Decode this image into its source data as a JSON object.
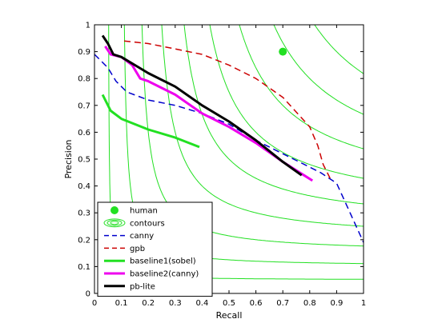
{
  "chart_data": {
    "type": "line",
    "xlabel": "Recall",
    "ylabel": "Precision",
    "xlim": [
      0,
      1
    ],
    "ylim": [
      0,
      1
    ],
    "x_ticks": [
      "0",
      "0.1",
      "0.2",
      "0.3",
      "0.4",
      "0.5",
      "0.6",
      "0.7",
      "0.8",
      "0.9",
      "1"
    ],
    "y_ticks": [
      "0",
      "0.1",
      "0.2",
      "0.3",
      "0.4",
      "0.5",
      "0.6",
      "0.7",
      "0.8",
      "0.9",
      "1"
    ],
    "grid": false,
    "legend_position": "bottom-left",
    "contour_levels": [
      0.1,
      0.2,
      0.3,
      0.4,
      0.5,
      0.6,
      0.7,
      0.8,
      0.9
    ],
    "series": [
      {
        "name": "human",
        "kind": "marker",
        "color": "#22e022",
        "points": [
          [
            0.7,
            0.9
          ]
        ]
      },
      {
        "name": "contours",
        "kind": "contour",
        "color": "#22e022",
        "points": []
      },
      {
        "name": "canny",
        "kind": "line",
        "color": "#0000cc",
        "dash": "dashed",
        "width": 1.5,
        "points": [
          [
            0.0,
            0.89
          ],
          [
            0.05,
            0.84
          ],
          [
            0.08,
            0.79
          ],
          [
            0.12,
            0.75
          ],
          [
            0.2,
            0.72
          ],
          [
            0.3,
            0.7
          ],
          [
            0.4,
            0.67
          ],
          [
            0.5,
            0.63
          ],
          [
            0.6,
            0.57
          ],
          [
            0.7,
            0.52
          ],
          [
            0.78,
            0.48
          ],
          [
            0.84,
            0.45
          ],
          [
            0.9,
            0.41
          ],
          [
            0.95,
            0.3
          ],
          [
            1.0,
            0.19
          ]
        ]
      },
      {
        "name": "gpb",
        "kind": "line",
        "color": "#cc0000",
        "dash": "dashed",
        "width": 1.5,
        "points": [
          [
            0.11,
            0.94
          ],
          [
            0.2,
            0.93
          ],
          [
            0.3,
            0.91
          ],
          [
            0.4,
            0.89
          ],
          [
            0.5,
            0.85
          ],
          [
            0.6,
            0.8
          ],
          [
            0.7,
            0.73
          ],
          [
            0.8,
            0.62
          ],
          [
            0.83,
            0.55
          ],
          [
            0.85,
            0.48
          ],
          [
            0.88,
            0.42
          ]
        ]
      },
      {
        "name": "baseline1(sobel)",
        "kind": "line",
        "color": "#22e022",
        "dash": "solid",
        "width": 3,
        "points": [
          [
            0.03,
            0.74
          ],
          [
            0.06,
            0.68
          ],
          [
            0.1,
            0.65
          ],
          [
            0.2,
            0.61
          ],
          [
            0.3,
            0.58
          ],
          [
            0.39,
            0.545
          ]
        ]
      },
      {
        "name": "baseline2(canny)",
        "kind": "line",
        "color": "#ee00ee",
        "dash": "solid",
        "width": 3,
        "points": [
          [
            0.04,
            0.92
          ],
          [
            0.06,
            0.89
          ],
          [
            0.1,
            0.88
          ],
          [
            0.14,
            0.85
          ],
          [
            0.17,
            0.8
          ],
          [
            0.2,
            0.79
          ],
          [
            0.3,
            0.74
          ],
          [
            0.4,
            0.67
          ],
          [
            0.5,
            0.62
          ],
          [
            0.6,
            0.56
          ],
          [
            0.7,
            0.49
          ],
          [
            0.81,
            0.42
          ]
        ]
      },
      {
        "name": "pb-lite",
        "kind": "line",
        "color": "#000000",
        "dash": "solid",
        "width": 3,
        "points": [
          [
            0.03,
            0.96
          ],
          [
            0.05,
            0.93
          ],
          [
            0.07,
            0.89
          ],
          [
            0.1,
            0.88
          ],
          [
            0.15,
            0.85
          ],
          [
            0.2,
            0.82
          ],
          [
            0.3,
            0.77
          ],
          [
            0.4,
            0.7
          ],
          [
            0.5,
            0.64
          ],
          [
            0.6,
            0.57
          ],
          [
            0.7,
            0.49
          ],
          [
            0.77,
            0.44
          ]
        ]
      }
    ]
  }
}
